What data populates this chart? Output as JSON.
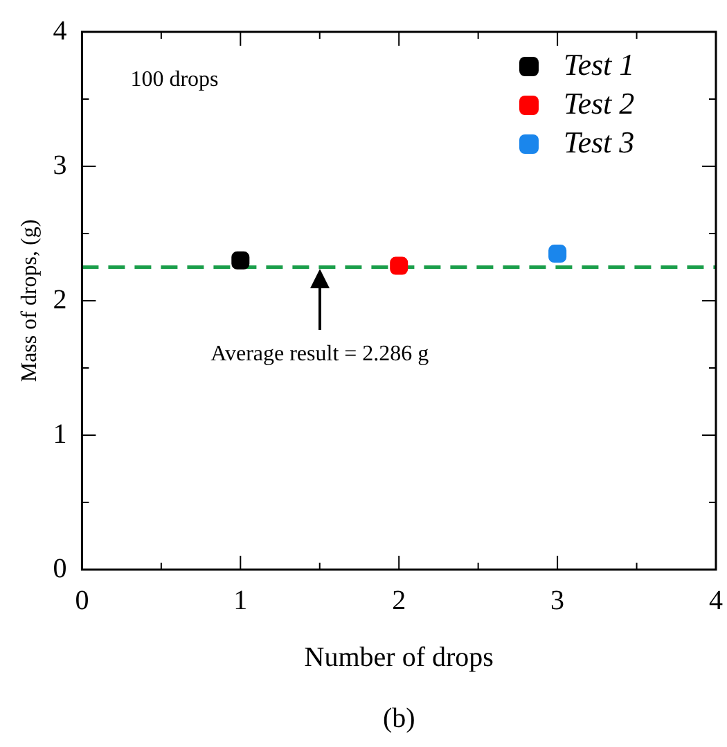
{
  "chart_data": {
    "type": "scatter",
    "xlabel": "Number of drops",
    "ylabel": "Mass of drops, (g)",
    "series": [
      {
        "name": "Test 1",
        "color": "#000000",
        "x": [
          1
        ],
        "values": [
          2.3
        ]
      },
      {
        "name": "Test 2",
        "color": "#ff0000",
        "x": [
          2
        ],
        "values": [
          2.26
        ]
      },
      {
        "name": "Test 3",
        "color": "#1a86ec",
        "x": [
          3
        ],
        "values": [
          2.35
        ]
      }
    ],
    "xlim": [
      0,
      4
    ],
    "xticks": [
      0,
      1,
      2,
      3,
      4
    ],
    "ylim": [
      0,
      4
    ],
    "yticks": [
      0,
      1,
      2,
      3,
      4
    ],
    "ref_lines": [
      {
        "axis": "y",
        "value": 2.25,
        "color": "#1a9e4a",
        "line_style": "dashed"
      }
    ],
    "annotations": [
      "100 drops",
      "Average result = 2.286 g",
      "(b)"
    ],
    "marker": "square",
    "legend": "top right",
    "grid": false
  }
}
